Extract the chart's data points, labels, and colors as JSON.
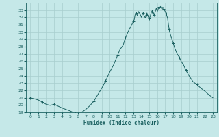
{
  "title": "",
  "xlabel": "Humidex (Indice chaleur)",
  "background_color": "#c5e8e8",
  "grid_color": "#a8cece",
  "line_color": "#1a6060",
  "x_detailed": [
    0,
    0.5,
    1,
    1.5,
    2,
    2.5,
    3,
    3.5,
    4,
    4.5,
    5,
    5.3,
    5.7,
    6,
    6.3,
    6.6,
    7,
    7.5,
    8,
    8.5,
    9,
    9.5,
    10,
    10.5,
    11,
    11.3,
    11.7,
    12,
    12.3,
    12.7,
    13,
    13.1,
    13.2,
    13.35,
    13.5,
    13.65,
    13.8,
    14,
    14.1,
    14.2,
    14.35,
    14.5,
    14.6,
    14.7,
    14.85,
    15,
    15.1,
    15.2,
    15.3,
    15.4,
    15.5,
    15.6,
    15.7,
    15.8,
    15.9,
    16,
    16.1,
    16.2,
    16.3,
    16.4,
    16.5,
    16.6,
    16.7,
    16.8,
    16.9,
    17,
    17.1,
    17.2,
    17.3,
    17.5,
    17.7,
    17.9,
    18,
    18.2,
    18.5,
    18.8,
    19,
    19.3,
    19.6,
    20,
    20.5,
    21,
    21.5,
    22,
    22.5,
    23
  ],
  "y_detailed": [
    21.0,
    20.85,
    20.7,
    20.4,
    20.1,
    19.95,
    20.1,
    19.85,
    19.6,
    19.4,
    19.2,
    19.05,
    18.9,
    18.85,
    18.9,
    19.1,
    19.4,
    19.9,
    20.5,
    21.4,
    22.3,
    23.3,
    24.5,
    25.5,
    26.8,
    27.6,
    28.2,
    29.2,
    30.0,
    30.8,
    31.5,
    31.7,
    32.3,
    32.6,
    32.2,
    32.8,
    32.5,
    32.0,
    32.3,
    32.6,
    32.2,
    31.9,
    32.3,
    32.6,
    32.1,
    31.8,
    32.1,
    32.5,
    32.8,
    33.0,
    32.7,
    32.3,
    32.6,
    33.0,
    33.3,
    32.8,
    33.1,
    33.4,
    33.2,
    33.5,
    33.3,
    33.1,
    33.4,
    33.2,
    33.0,
    32.8,
    32.5,
    32.2,
    31.9,
    30.3,
    29.5,
    28.8,
    28.5,
    27.8,
    27.0,
    26.5,
    26.0,
    25.5,
    24.8,
    24.0,
    23.2,
    22.8,
    22.3,
    21.9,
    21.4,
    21.0
  ],
  "ylim": [
    19,
    34
  ],
  "yticks": [
    19,
    20,
    21,
    22,
    23,
    24,
    25,
    26,
    27,
    28,
    29,
    30,
    31,
    32,
    33
  ],
  "xticks": [
    0,
    1,
    2,
    3,
    4,
    5,
    6,
    7,
    8,
    9,
    10,
    11,
    12,
    13,
    14,
    15,
    16,
    17,
    18,
    19,
    20,
    21,
    22,
    23
  ],
  "xlim": [
    -0.5,
    23.5
  ]
}
